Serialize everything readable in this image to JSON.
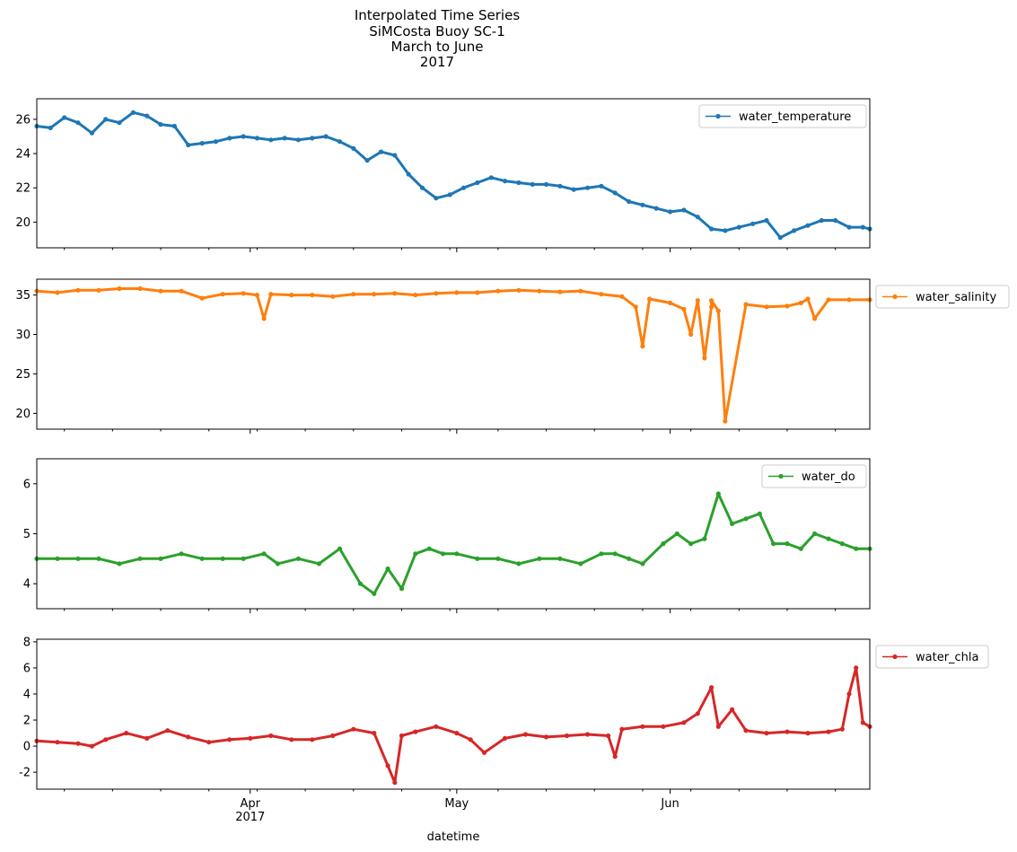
{
  "title": [
    "Interpolated Time Series",
    "SiMCosta Buoy SC-1",
    "March to June",
    "2017"
  ],
  "xlabel": "datetime",
  "x_range": [
    "2017-03-01",
    "2017-06-30"
  ],
  "x_ticks": [
    {
      "date": "2017-04-01",
      "label": "Apr",
      "sublabel": "2017"
    },
    {
      "date": "2017-05-01",
      "label": "May",
      "sublabel": ""
    },
    {
      "date": "2017-06-01",
      "label": "Jun",
      "sublabel": ""
    }
  ],
  "colors": {
    "water_temperature": "#1f77b4",
    "water_salinity": "#ff7f0e",
    "water_do": "#2ca02c",
    "water_chla": "#d62728"
  },
  "chart_data": [
    {
      "type": "line",
      "series": [
        {
          "name": "water_temperature",
          "color": "#1f77b4",
          "marker": "point",
          "x": [
            "2017-03-01",
            "2017-03-03",
            "2017-03-05",
            "2017-03-07",
            "2017-03-09",
            "2017-03-11",
            "2017-03-13",
            "2017-03-15",
            "2017-03-17",
            "2017-03-19",
            "2017-03-21",
            "2017-03-23",
            "2017-03-25",
            "2017-03-27",
            "2017-03-29",
            "2017-03-31",
            "2017-04-02",
            "2017-04-04",
            "2017-04-06",
            "2017-04-08",
            "2017-04-10",
            "2017-04-12",
            "2017-04-14",
            "2017-04-16",
            "2017-04-18",
            "2017-04-20",
            "2017-04-22",
            "2017-04-24",
            "2017-04-26",
            "2017-04-28",
            "2017-04-30",
            "2017-05-02",
            "2017-05-04",
            "2017-05-06",
            "2017-05-08",
            "2017-05-10",
            "2017-05-12",
            "2017-05-14",
            "2017-05-16",
            "2017-05-18",
            "2017-05-20",
            "2017-05-22",
            "2017-05-24",
            "2017-05-26",
            "2017-05-28",
            "2017-05-30",
            "2017-06-01",
            "2017-06-03",
            "2017-06-05",
            "2017-06-07",
            "2017-06-09",
            "2017-06-11",
            "2017-06-13",
            "2017-06-15",
            "2017-06-17",
            "2017-06-19",
            "2017-06-21",
            "2017-06-23",
            "2017-06-25",
            "2017-06-27",
            "2017-06-29",
            "2017-06-30"
          ],
          "values": [
            25.6,
            25.5,
            26.1,
            25.8,
            25.2,
            26.0,
            25.8,
            26.4,
            26.2,
            25.7,
            25.6,
            24.5,
            24.6,
            24.7,
            24.9,
            25.0,
            24.9,
            24.8,
            24.9,
            24.8,
            24.9,
            25.0,
            24.7,
            24.3,
            23.6,
            24.1,
            23.9,
            22.8,
            22.0,
            21.4,
            21.6,
            22.0,
            22.3,
            22.6,
            22.4,
            22.3,
            22.2,
            22.2,
            22.1,
            21.9,
            22.0,
            22.1,
            21.7,
            21.2,
            21.0,
            20.8,
            20.6,
            20.7,
            20.3,
            19.6,
            19.5,
            19.7,
            19.9,
            20.1,
            19.1,
            19.5,
            19.8,
            20.1,
            20.1,
            19.7,
            19.7,
            19.6
          ]
        }
      ],
      "ylim": [
        18.5,
        27.2
      ],
      "y_ticks": [
        20,
        22,
        24,
        26
      ],
      "legend": "top-right"
    },
    {
      "type": "line",
      "series": [
        {
          "name": "water_salinity",
          "color": "#ff7f0e",
          "marker": "point",
          "x": [
            "2017-03-01",
            "2017-03-04",
            "2017-03-07",
            "2017-03-10",
            "2017-03-13",
            "2017-03-16",
            "2017-03-19",
            "2017-03-22",
            "2017-03-25",
            "2017-03-28",
            "2017-03-31",
            "2017-04-02",
            "2017-04-03",
            "2017-04-04",
            "2017-04-07",
            "2017-04-10",
            "2017-04-13",
            "2017-04-16",
            "2017-04-19",
            "2017-04-22",
            "2017-04-25",
            "2017-04-28",
            "2017-05-01",
            "2017-05-04",
            "2017-05-07",
            "2017-05-10",
            "2017-05-13",
            "2017-05-16",
            "2017-05-19",
            "2017-05-22",
            "2017-05-25",
            "2017-05-27",
            "2017-05-28",
            "2017-05-29",
            "2017-06-01",
            "2017-06-03",
            "2017-06-04",
            "2017-06-05",
            "2017-06-06",
            "2017-06-07",
            "2017-06-07",
            "2017-06-08",
            "2017-06-09",
            "2017-06-12",
            "2017-06-15",
            "2017-06-18",
            "2017-06-20",
            "2017-06-21",
            "2017-06-22",
            "2017-06-24",
            "2017-06-27",
            "2017-06-30"
          ],
          "values": [
            35.5,
            35.3,
            35.6,
            35.6,
            35.8,
            35.8,
            35.5,
            35.5,
            34.6,
            35.1,
            35.2,
            35.0,
            32.0,
            35.1,
            35.0,
            35.0,
            34.8,
            35.1,
            35.1,
            35.2,
            35.0,
            35.2,
            35.3,
            35.3,
            35.5,
            35.6,
            35.5,
            35.4,
            35.5,
            35.1,
            34.8,
            33.5,
            28.5,
            34.5,
            34.0,
            33.2,
            30.0,
            34.3,
            27.0,
            33.5,
            34.3,
            33.0,
            19.0,
            33.8,
            33.5,
            33.6,
            34.0,
            34.5,
            32.0,
            34.4,
            34.4,
            34.4
          ]
        }
      ],
      "ylim": [
        18.0,
        37.0
      ],
      "y_ticks": [
        20,
        25,
        30,
        35
      ],
      "legend": "outside-right"
    },
    {
      "type": "line",
      "series": [
        {
          "name": "water_do",
          "color": "#2ca02c",
          "marker": "point",
          "x": [
            "2017-03-01",
            "2017-03-04",
            "2017-03-07",
            "2017-03-10",
            "2017-03-13",
            "2017-03-16",
            "2017-03-19",
            "2017-03-22",
            "2017-03-25",
            "2017-03-28",
            "2017-03-31",
            "2017-04-03",
            "2017-04-05",
            "2017-04-08",
            "2017-04-11",
            "2017-04-14",
            "2017-04-17",
            "2017-04-19",
            "2017-04-21",
            "2017-04-23",
            "2017-04-25",
            "2017-04-27",
            "2017-04-29",
            "2017-05-01",
            "2017-05-04",
            "2017-05-07",
            "2017-05-10",
            "2017-05-13",
            "2017-05-16",
            "2017-05-19",
            "2017-05-22",
            "2017-05-24",
            "2017-05-26",
            "2017-05-28",
            "2017-05-31",
            "2017-06-02",
            "2017-06-04",
            "2017-06-06",
            "2017-06-08",
            "2017-06-10",
            "2017-06-12",
            "2017-06-14",
            "2017-06-16",
            "2017-06-18",
            "2017-06-20",
            "2017-06-22",
            "2017-06-24",
            "2017-06-26",
            "2017-06-28",
            "2017-06-30"
          ],
          "values": [
            4.5,
            4.5,
            4.5,
            4.5,
            4.4,
            4.5,
            4.5,
            4.6,
            4.5,
            4.5,
            4.5,
            4.6,
            4.4,
            4.5,
            4.4,
            4.7,
            4.0,
            3.8,
            4.3,
            3.9,
            4.6,
            4.7,
            4.6,
            4.6,
            4.5,
            4.5,
            4.4,
            4.5,
            4.5,
            4.4,
            4.6,
            4.6,
            4.5,
            4.4,
            4.8,
            5.0,
            4.8,
            4.9,
            5.8,
            5.2,
            5.3,
            5.4,
            4.8,
            4.8,
            4.7,
            5.0,
            4.9,
            4.8,
            4.7,
            4.7
          ]
        }
      ],
      "ylim": [
        3.5,
        6.5
      ],
      "y_ticks": [
        4,
        5,
        6
      ],
      "legend": "top-right"
    },
    {
      "type": "line",
      "series": [
        {
          "name": "water_chla",
          "color": "#d62728",
          "marker": "point",
          "x": [
            "2017-03-01",
            "2017-03-04",
            "2017-03-07",
            "2017-03-09",
            "2017-03-11",
            "2017-03-14",
            "2017-03-17",
            "2017-03-20",
            "2017-03-23",
            "2017-03-26",
            "2017-03-29",
            "2017-04-01",
            "2017-04-04",
            "2017-04-07",
            "2017-04-10",
            "2017-04-13",
            "2017-04-16",
            "2017-04-19",
            "2017-04-21",
            "2017-04-22",
            "2017-04-23",
            "2017-04-25",
            "2017-04-28",
            "2017-05-01",
            "2017-05-03",
            "2017-05-05",
            "2017-05-08",
            "2017-05-11",
            "2017-05-14",
            "2017-05-17",
            "2017-05-20",
            "2017-05-23",
            "2017-05-24",
            "2017-05-25",
            "2017-05-28",
            "2017-05-31",
            "2017-06-03",
            "2017-06-05",
            "2017-06-07",
            "2017-06-08",
            "2017-06-10",
            "2017-06-12",
            "2017-06-15",
            "2017-06-18",
            "2017-06-21",
            "2017-06-24",
            "2017-06-26",
            "2017-06-27",
            "2017-06-28",
            "2017-06-29",
            "2017-06-30"
          ],
          "values": [
            0.4,
            0.3,
            0.2,
            0.0,
            0.5,
            1.0,
            0.6,
            1.2,
            0.7,
            0.3,
            0.5,
            0.6,
            0.8,
            0.5,
            0.5,
            0.8,
            1.3,
            1.0,
            -1.5,
            -2.8,
            0.8,
            1.1,
            1.5,
            1.0,
            0.5,
            -0.5,
            0.6,
            0.9,
            0.7,
            0.8,
            0.9,
            0.8,
            -0.8,
            1.3,
            1.5,
            1.5,
            1.8,
            2.5,
            4.5,
            1.5,
            2.8,
            1.2,
            1.0,
            1.1,
            1.0,
            1.1,
            1.3,
            4.0,
            6.0,
            1.8,
            1.5
          ]
        }
      ],
      "ylim": [
        -3.3,
        8.2
      ],
      "y_ticks": [
        -2,
        0,
        2,
        4,
        6,
        8
      ],
      "legend": "outside-right"
    }
  ]
}
